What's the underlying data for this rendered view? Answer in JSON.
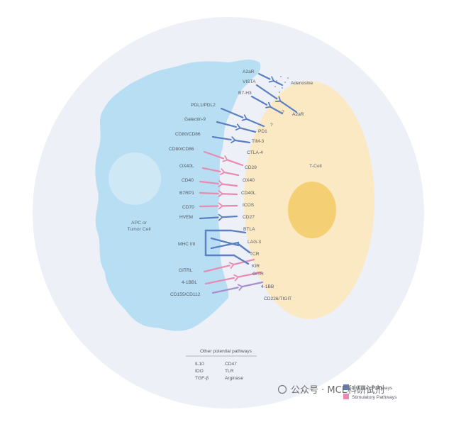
{
  "colors": {
    "background_circle": "#eef0f8",
    "apc_cell": "#b7def2",
    "apc_nucleus": "#cfe8f6",
    "t_cell": "#fbe9c4",
    "t_nucleus": "#f5cf74",
    "inhibitory": "#5b7fc0",
    "stimulatory": "#e98ab2",
    "cd226": "#a78fcf",
    "text": "#555a66"
  },
  "cells": {
    "apc_label_line1": "APC or",
    "apc_label_line2": "Tumor Cell",
    "t_label": "T-Cell"
  },
  "ligands": [
    {
      "id": "a2ar-top",
      "label": "A2aR",
      "type": "inhibitory"
    },
    {
      "id": "vista",
      "label": "VISTA",
      "type": "inhibitory"
    },
    {
      "id": "b7h3",
      "label": "B7-H3",
      "type": "inhibitory"
    },
    {
      "id": "pdl1pdl2",
      "label": "PDL1/PDL2",
      "type": "inhibitory"
    },
    {
      "id": "galectin9",
      "label": "Galectin-9",
      "type": "inhibitory"
    },
    {
      "id": "cd80cd86-a",
      "label": "CD80/CD86",
      "type": "inhibitory"
    },
    {
      "id": "cd80cd86-b",
      "label": "CD80/CD86",
      "type": "stimulatory"
    },
    {
      "id": "ox40l",
      "label": "OX40L",
      "type": "stimulatory"
    },
    {
      "id": "cd40",
      "label": "CD40",
      "type": "stimulatory"
    },
    {
      "id": "b7rp1",
      "label": "B7RP1",
      "type": "stimulatory"
    },
    {
      "id": "cd70",
      "label": "CD70",
      "type": "stimulatory"
    },
    {
      "id": "hvem",
      "label": "HVEM",
      "type": "inhibitory"
    },
    {
      "id": "mhc",
      "label": "MHC I/II",
      "type": "inhibitory"
    },
    {
      "id": "gitrl",
      "label": "GITRL",
      "type": "stimulatory"
    },
    {
      "id": "4-1bbl",
      "label": "4-1BBL",
      "type": "stimulatory"
    },
    {
      "id": "cd155cd112",
      "label": "CD155/CD112",
      "type": "cd226"
    }
  ],
  "receptors": [
    {
      "id": "adenosine",
      "label": "Adenosine"
    },
    {
      "id": "a2ar-right",
      "label": "A2aR"
    },
    {
      "id": "q1",
      "label": "?"
    },
    {
      "id": "q2",
      "label": "?"
    },
    {
      "id": "pd1",
      "label": "PD1"
    },
    {
      "id": "tim3",
      "label": "TIM-3"
    },
    {
      "id": "ctla4",
      "label": "CTLA-4"
    },
    {
      "id": "cd28",
      "label": "CD28"
    },
    {
      "id": "ox40",
      "label": "OX40"
    },
    {
      "id": "cd40l",
      "label": "CD40L"
    },
    {
      "id": "icos",
      "label": "ICOS"
    },
    {
      "id": "cd27",
      "label": "CD27"
    },
    {
      "id": "btla",
      "label": "BTLA"
    },
    {
      "id": "lag3",
      "label": "LAG-3"
    },
    {
      "id": "tcr",
      "label": "TCR"
    },
    {
      "id": "kir",
      "label": "KIR"
    },
    {
      "id": "gitr",
      "label": "GITR"
    },
    {
      "id": "4-1bb",
      "label": "4-1BB"
    },
    {
      "id": "cd226tigit",
      "label": "CD226/TIGIT"
    }
  ],
  "other_pathways": {
    "title": "Other potential pathways",
    "col1": [
      "IL10",
      "IDO",
      "TGF-β"
    ],
    "col2": [
      "CD47",
      "TLR",
      "Arginase"
    ]
  },
  "legend": {
    "inhibitory_label": "Inhibitory Pathways",
    "stimulatory_label": "Stimulatory Pathways"
  },
  "watermark": "公众号 · MCE科研试剂"
}
